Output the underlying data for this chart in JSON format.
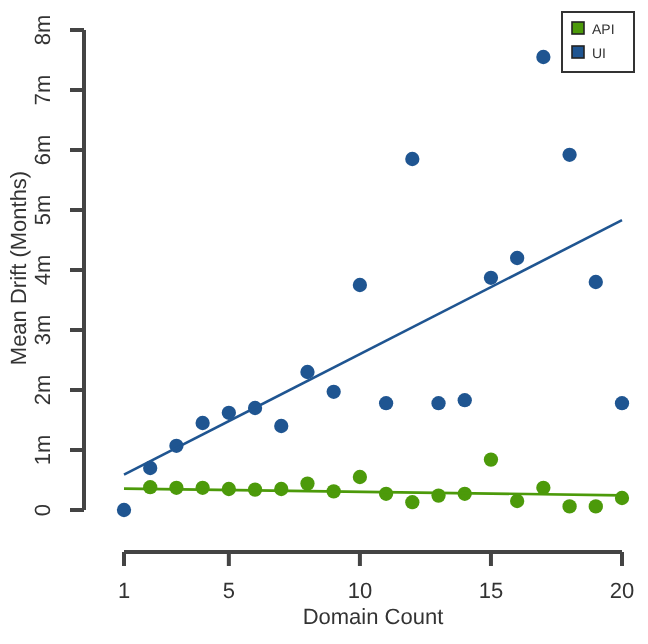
{
  "chart_data": {
    "type": "scatter",
    "xlabel": "Domain Count",
    "ylabel": "Mean Drift (Months)",
    "xlim": [
      1,
      20
    ],
    "ylim": [
      0,
      8
    ],
    "xticks": [
      1,
      5,
      10,
      15,
      20
    ],
    "yticks": [
      0,
      {
        "value": 1,
        "label": "1m"
      },
      {
        "value": 2,
        "label": "2m"
      },
      {
        "value": 3,
        "label": "3m"
      },
      {
        "value": 4,
        "label": "4m"
      },
      {
        "value": 5,
        "label": "5m"
      },
      {
        "value": 6,
        "label": "6m"
      },
      {
        "value": 7,
        "label": "7m"
      },
      {
        "value": 8,
        "label": "8m"
      }
    ],
    "legend": "top right",
    "grid": false,
    "series": [
      {
        "name": "API",
        "color": "#4c9a0a",
        "marker": "circle",
        "x": [
          2,
          3,
          4,
          5,
          6,
          7,
          8,
          9,
          10,
          11,
          12,
          13,
          14,
          15,
          16,
          17,
          18,
          19,
          20
        ],
        "values": [
          0.38,
          0.37,
          0.37,
          0.35,
          0.34,
          0.35,
          0.44,
          0.31,
          0.55,
          0.27,
          0.13,
          0.24,
          0.27,
          0.84,
          0.15,
          0.37,
          0.06,
          0.06,
          0.2
        ]
      },
      {
        "name": "UI",
        "color": "#1f5591",
        "marker": "circle",
        "x": [
          1,
          2,
          3,
          4,
          5,
          6,
          7,
          8,
          9,
          10,
          11,
          12,
          13,
          14,
          15,
          16,
          17,
          18,
          19,
          20
        ],
        "values": [
          0,
          0.7,
          1.07,
          1.45,
          1.62,
          1.7,
          1.4,
          2.3,
          1.97,
          3.75,
          1.78,
          5.85,
          1.78,
          1.83,
          3.87,
          4.2,
          7.55,
          5.92,
          3.8,
          1.78
        ]
      },
      {
        "type": "line",
        "color": "#4c9a0a",
        "x": [
          1,
          20
        ],
        "values": [
          0.356,
          0.244
        ]
      },
      {
        "type": "line",
        "color": "#1f5591",
        "x": [
          1,
          20
        ],
        "values": [
          0.59,
          4.83
        ]
      }
    ]
  }
}
